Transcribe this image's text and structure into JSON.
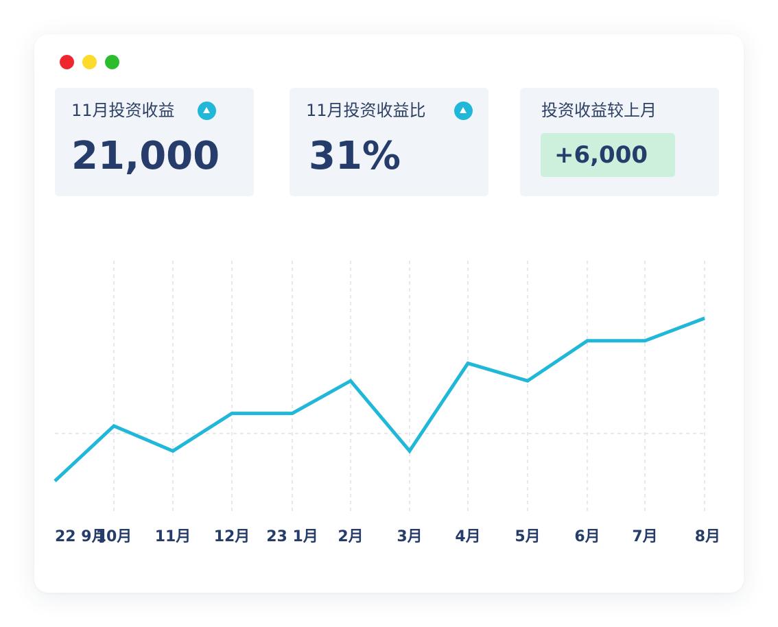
{
  "window_controls": [
    "close",
    "minimize",
    "maximize"
  ],
  "cards": [
    {
      "label": "11月投资收益",
      "value": "21,000",
      "trend_icon": "up-triangle-icon"
    },
    {
      "label": "11月投资收益比",
      "value": "31%",
      "trend_icon": "up-triangle-icon"
    },
    {
      "label": "投资收益较上月",
      "value": "+6,000"
    }
  ],
  "colors": {
    "accent": "#21b7d8",
    "text": "#263c6a",
    "card_bg": "#f1f5f9",
    "badge_bg": "#cdf0dc"
  },
  "chart_data": {
    "type": "line",
    "title": "",
    "xlabel": "",
    "ylabel": "",
    "x_ticks": [
      "22 9月",
      "10月",
      "11月",
      "12月",
      "23 1月",
      "2月",
      "3月",
      "4月",
      "5月",
      "6月",
      "7月",
      "8月"
    ],
    "series": [
      {
        "values": [
          12,
          34,
          24,
          39,
          39,
          52,
          24,
          59,
          52,
          68,
          68,
          77
        ]
      }
    ],
    "ylim": [
      0,
      100
    ],
    "grid": {
      "vertical": true,
      "horizontal_reference": 31
    },
    "color": "#21b7d8"
  }
}
